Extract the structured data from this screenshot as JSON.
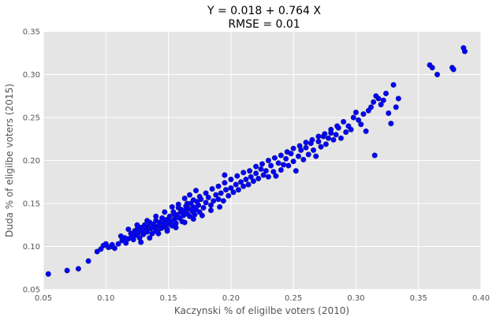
{
  "chart_data": {
    "type": "scatter",
    "title_lines": [
      "Y = 0.018 + 0.764 X",
      "RMSE = 0.01"
    ],
    "xlabel": "Kaczynski % of eligilbe voters (2010)",
    "ylabel": "Duda % of eligilbe voters (2015)",
    "xlim": [
      0.05,
      0.4
    ],
    "ylim": [
      0.05,
      0.35
    ],
    "xticks": [
      "0.05",
      "0.10",
      "0.15",
      "0.20",
      "0.25",
      "0.30",
      "0.35",
      "0.40"
    ],
    "yticks": [
      "0.05",
      "0.10",
      "0.15",
      "0.20",
      "0.25",
      "0.30",
      "0.35"
    ],
    "grid": true,
    "style": {
      "background": "#E5E5E5",
      "grid_color": "#FFFFFF",
      "point_color": "#0000FF",
      "point_edge": "#1A1A8C"
    },
    "points": [
      [
        0.054,
        0.068
      ],
      [
        0.069,
        0.072
      ],
      [
        0.078,
        0.074
      ],
      [
        0.086,
        0.083
      ],
      [
        0.093,
        0.094
      ],
      [
        0.096,
        0.097
      ],
      [
        0.098,
        0.101
      ],
      [
        0.1,
        0.103
      ],
      [
        0.102,
        0.099
      ],
      [
        0.104,
        0.1
      ],
      [
        0.105,
        0.102
      ],
      [
        0.107,
        0.098
      ],
      [
        0.11,
        0.103
      ],
      [
        0.112,
        0.112
      ],
      [
        0.113,
        0.107
      ],
      [
        0.115,
        0.11
      ],
      [
        0.116,
        0.104
      ],
      [
        0.118,
        0.109
      ],
      [
        0.12,
        0.115
      ],
      [
        0.121,
        0.112
      ],
      [
        0.122,
        0.108
      ],
      [
        0.123,
        0.118
      ],
      [
        0.124,
        0.113
      ],
      [
        0.125,
        0.12
      ],
      [
        0.126,
        0.116
      ],
      [
        0.127,
        0.11
      ],
      [
        0.128,
        0.122
      ],
      [
        0.129,
        0.119
      ],
      [
        0.13,
        0.114
      ],
      [
        0.131,
        0.125
      ],
      [
        0.132,
        0.12
      ],
      [
        0.133,
        0.117
      ],
      [
        0.134,
        0.123
      ],
      [
        0.135,
        0.128
      ],
      [
        0.136,
        0.121
      ],
      [
        0.137,
        0.115
      ],
      [
        0.138,
        0.126
      ],
      [
        0.139,
        0.122
      ],
      [
        0.14,
        0.13
      ],
      [
        0.141,
        0.118
      ],
      [
        0.142,
        0.124
      ],
      [
        0.143,
        0.128
      ],
      [
        0.144,
        0.121
      ],
      [
        0.145,
        0.133
      ],
      [
        0.146,
        0.127
      ],
      [
        0.147,
        0.123
      ],
      [
        0.148,
        0.131
      ],
      [
        0.149,
        0.12
      ],
      [
        0.15,
        0.126
      ],
      [
        0.151,
        0.135
      ],
      [
        0.152,
        0.129
      ],
      [
        0.153,
        0.124
      ],
      [
        0.154,
        0.14
      ],
      [
        0.155,
        0.132
      ],
      [
        0.156,
        0.127
      ],
      [
        0.157,
        0.137
      ],
      [
        0.158,
        0.145
      ],
      [
        0.159,
        0.133
      ],
      [
        0.16,
        0.14
      ],
      [
        0.161,
        0.129
      ],
      [
        0.162,
        0.136
      ],
      [
        0.163,
        0.142
      ],
      [
        0.164,
        0.147
      ],
      [
        0.165,
        0.138
      ],
      [
        0.166,
        0.144
      ],
      [
        0.167,
        0.135
      ],
      [
        0.168,
        0.15
      ],
      [
        0.169,
        0.141
      ],
      [
        0.17,
        0.146
      ],
      [
        0.171,
        0.137
      ],
      [
        0.172,
        0.143
      ],
      [
        0.173,
        0.152
      ],
      [
        0.174,
        0.148
      ],
      [
        0.175,
        0.14
      ],
      [
        0.176,
        0.155
      ],
      [
        0.178,
        0.145
      ],
      [
        0.18,
        0.151
      ],
      [
        0.182,
        0.157
      ],
      [
        0.184,
        0.148
      ],
      [
        0.186,
        0.153
      ],
      [
        0.188,
        0.16
      ],
      [
        0.19,
        0.155
      ],
      [
        0.192,
        0.162
      ],
      [
        0.194,
        0.153
      ],
      [
        0.195,
        0.183
      ],
      [
        0.196,
        0.166
      ],
      [
        0.198,
        0.159
      ],
      [
        0.2,
        0.168
      ],
      [
        0.202,
        0.163
      ],
      [
        0.204,
        0.172
      ],
      [
        0.206,
        0.166
      ],
      [
        0.208,
        0.175
      ],
      [
        0.21,
        0.17
      ],
      [
        0.212,
        0.178
      ],
      [
        0.214,
        0.172
      ],
      [
        0.216,
        0.181
      ],
      [
        0.218,
        0.176
      ],
      [
        0.22,
        0.185
      ],
      [
        0.222,
        0.179
      ],
      [
        0.224,
        0.19
      ],
      [
        0.226,
        0.183
      ],
      [
        0.228,
        0.188
      ],
      [
        0.23,
        0.181
      ],
      [
        0.232,
        0.194
      ],
      [
        0.234,
        0.187
      ],
      [
        0.236,
        0.182
      ],
      [
        0.238,
        0.197
      ],
      [
        0.24,
        0.189
      ],
      [
        0.242,
        0.195
      ],
      [
        0.244,
        0.202
      ],
      [
        0.246,
        0.194
      ],
      [
        0.248,
        0.208
      ],
      [
        0.25,
        0.199
      ],
      [
        0.252,
        0.188
      ],
      [
        0.254,
        0.205
      ],
      [
        0.256,
        0.212
      ],
      [
        0.258,
        0.201
      ],
      [
        0.26,
        0.215
      ],
      [
        0.262,
        0.207
      ],
      [
        0.264,
        0.22
      ],
      [
        0.266,
        0.212
      ],
      [
        0.268,
        0.205
      ],
      [
        0.27,
        0.222
      ],
      [
        0.272,
        0.216
      ],
      [
        0.274,
        0.228
      ],
      [
        0.276,
        0.219
      ],
      [
        0.278,
        0.226
      ],
      [
        0.28,
        0.232
      ],
      [
        0.282,
        0.224
      ],
      [
        0.284,
        0.23
      ],
      [
        0.286,
        0.238
      ],
      [
        0.288,
        0.226
      ],
      [
        0.29,
        0.245
      ],
      [
        0.292,
        0.233
      ],
      [
        0.294,
        0.24
      ],
      [
        0.296,
        0.236
      ],
      [
        0.298,
        0.25
      ],
      [
        0.3,
        0.256
      ],
      [
        0.302,
        0.247
      ],
      [
        0.304,
        0.242
      ],
      [
        0.306,
        0.254
      ],
      [
        0.308,
        0.234
      ],
      [
        0.31,
        0.258
      ],
      [
        0.312,
        0.262
      ],
      [
        0.314,
        0.268
      ],
      [
        0.315,
        0.206
      ],
      [
        0.316,
        0.275
      ],
      [
        0.318,
        0.272
      ],
      [
        0.32,
        0.265
      ],
      [
        0.322,
        0.27
      ],
      [
        0.324,
        0.278
      ],
      [
        0.326,
        0.255
      ],
      [
        0.328,
        0.243
      ],
      [
        0.33,
        0.288
      ],
      [
        0.332,
        0.262
      ],
      [
        0.334,
        0.272
      ],
      [
        0.359,
        0.311
      ],
      [
        0.361,
        0.308
      ],
      [
        0.365,
        0.3
      ],
      [
        0.377,
        0.308
      ],
      [
        0.378,
        0.306
      ],
      [
        0.386,
        0.331
      ],
      [
        0.387,
        0.327
      ],
      [
        0.14,
        0.118
      ],
      [
        0.145,
        0.122
      ],
      [
        0.15,
        0.132
      ],
      [
        0.155,
        0.137
      ],
      [
        0.16,
        0.143
      ],
      [
        0.165,
        0.15
      ],
      [
        0.17,
        0.154
      ],
      [
        0.175,
        0.158
      ],
      [
        0.18,
        0.162
      ],
      [
        0.185,
        0.167
      ],
      [
        0.19,
        0.17
      ],
      [
        0.195,
        0.174
      ],
      [
        0.2,
        0.178
      ],
      [
        0.205,
        0.182
      ],
      [
        0.21,
        0.186
      ],
      [
        0.215,
        0.188
      ],
      [
        0.22,
        0.193
      ],
      [
        0.225,
        0.196
      ],
      [
        0.23,
        0.2
      ],
      [
        0.235,
        0.203
      ],
      [
        0.24,
        0.206
      ],
      [
        0.245,
        0.21
      ],
      [
        0.25,
        0.214
      ],
      [
        0.255,
        0.217
      ],
      [
        0.26,
        0.221
      ],
      [
        0.265,
        0.224
      ],
      [
        0.27,
        0.228
      ],
      [
        0.275,
        0.231
      ],
      [
        0.28,
        0.236
      ],
      [
        0.285,
        0.24
      ],
      [
        0.118,
        0.12
      ],
      [
        0.125,
        0.125
      ],
      [
        0.133,
        0.13
      ],
      [
        0.14,
        0.135
      ],
      [
        0.147,
        0.14
      ],
      [
        0.153,
        0.146
      ],
      [
        0.158,
        0.149
      ],
      [
        0.163,
        0.156
      ],
      [
        0.167,
        0.16
      ],
      [
        0.172,
        0.165
      ],
      [
        0.128,
        0.105
      ],
      [
        0.135,
        0.11
      ],
      [
        0.142,
        0.115
      ],
      [
        0.149,
        0.118
      ],
      [
        0.156,
        0.122
      ],
      [
        0.163,
        0.128
      ],
      [
        0.17,
        0.132
      ],
      [
        0.177,
        0.136
      ],
      [
        0.184,
        0.142
      ],
      [
        0.191,
        0.146
      ]
    ]
  }
}
